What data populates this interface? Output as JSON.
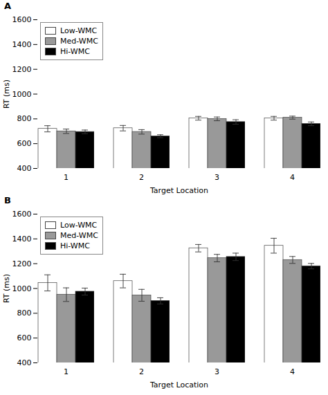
{
  "chart_data": [
    {
      "type": "bar",
      "title": "A",
      "x_label": "Target Location",
      "y_label": "RT (ms)",
      "categories": [
        "1",
        "2",
        "3",
        "4"
      ],
      "series": [
        {
          "name": "Low-WMC",
          "color": "#ffffff",
          "values": [
            720,
            725,
            805,
            805
          ],
          "errors": [
            25,
            22,
            15,
            15
          ]
        },
        {
          "name": "Med-WMC",
          "color": "#999999",
          "values": [
            700,
            695,
            800,
            810
          ],
          "errors": [
            18,
            18,
            15,
            12
          ]
        },
        {
          "name": "Hi-WMC",
          "color": "#000000",
          "values": [
            695,
            660,
            775,
            760
          ],
          "errors": [
            15,
            12,
            18,
            15
          ]
        }
      ],
      "ylim": [
        400,
        1600
      ],
      "yticks": [
        400,
        600,
        800,
        1000,
        1200,
        1400,
        1600
      ],
      "grid": false,
      "legend": "upper left"
    },
    {
      "type": "bar",
      "title": "B",
      "x_label": "Target Location",
      "y_label": "RT (ms)",
      "categories": [
        "1",
        "2",
        "3",
        "4"
      ],
      "series": [
        {
          "name": "Low-WMC",
          "color": "#ffffff",
          "values": [
            1045,
            1060,
            1325,
            1345
          ],
          "errors": [
            65,
            55,
            30,
            60
          ]
        },
        {
          "name": "Med-WMC",
          "color": "#999999",
          "values": [
            950,
            945,
            1245,
            1230
          ],
          "errors": [
            55,
            48,
            30,
            28
          ]
        },
        {
          "name": "Hi-WMC",
          "color": "#000000",
          "values": [
            975,
            900,
            1255,
            1180
          ],
          "errors": [
            28,
            25,
            30,
            22
          ]
        }
      ],
      "ylim": [
        400,
        1600
      ],
      "yticks": [
        400,
        600,
        800,
        1000,
        1200,
        1400,
        1600
      ],
      "grid": false,
      "legend": "upper left"
    }
  ]
}
